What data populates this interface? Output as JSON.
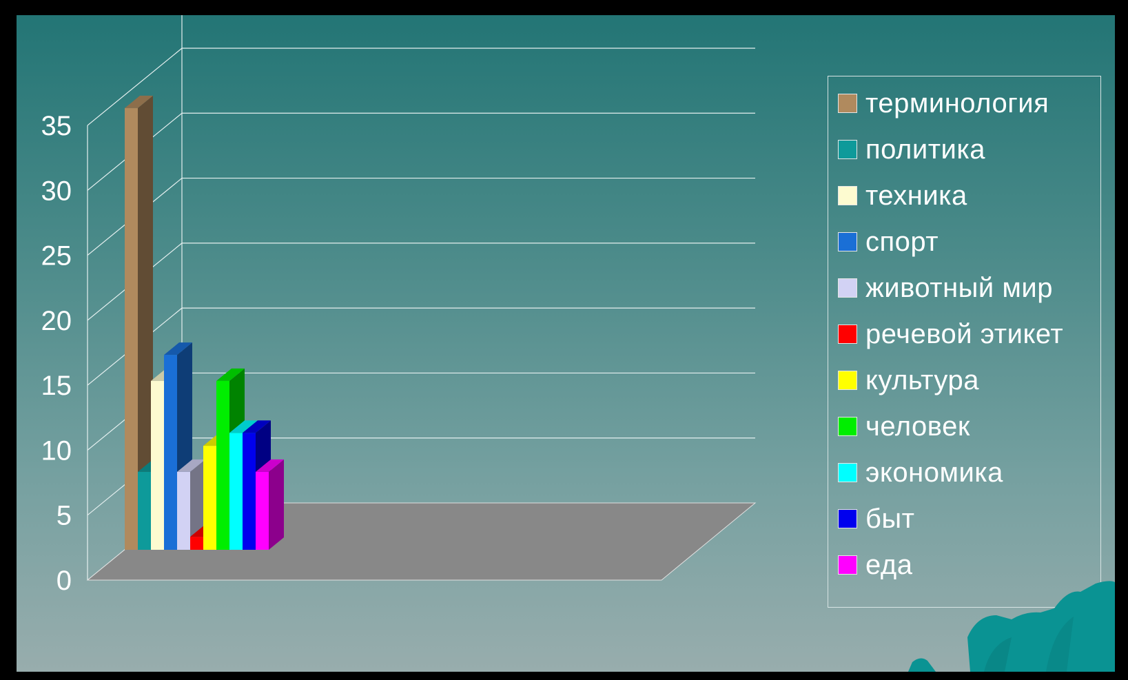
{
  "chart_data": {
    "type": "bar",
    "title": "",
    "xlabel": "",
    "ylabel": "",
    "ylim": [
      0,
      35
    ],
    "yticks": [
      0,
      5,
      10,
      15,
      20,
      25,
      30,
      35
    ],
    "three_d": true,
    "grid": true,
    "legend_position": "right",
    "series": [
      {
        "name": "терминология",
        "value": 34,
        "color": "#b08a5e"
      },
      {
        "name": "политика",
        "value": 6,
        "color": "#0e9a9a"
      },
      {
        "name": "техника",
        "value": 13,
        "color": "#fdfbd0"
      },
      {
        "name": "спорт",
        "value": 15,
        "color": "#1a6fd6"
      },
      {
        "name": "животный мир",
        "value": 6,
        "color": "#d2d2f4"
      },
      {
        "name": "речевой этикет",
        "value": 1,
        "color": "#ff0000"
      },
      {
        "name": "культура",
        "value": 8,
        "color": "#ffff00"
      },
      {
        "name": "человек",
        "value": 13,
        "color": "#00ee00"
      },
      {
        "name": "экономика",
        "value": 9,
        "color": "#00ffff"
      },
      {
        "name": "быт",
        "value": 9,
        "color": "#0000ee"
      },
      {
        "name": "еда",
        "value": 6,
        "color": "#ff00ff"
      }
    ]
  },
  "colors": {
    "floor": "#888888",
    "gridline": "#e6f0f0",
    "background_top": "#237575",
    "background_bottom": "#98adad",
    "frame": "#000000",
    "decoration": "#0a9393"
  }
}
